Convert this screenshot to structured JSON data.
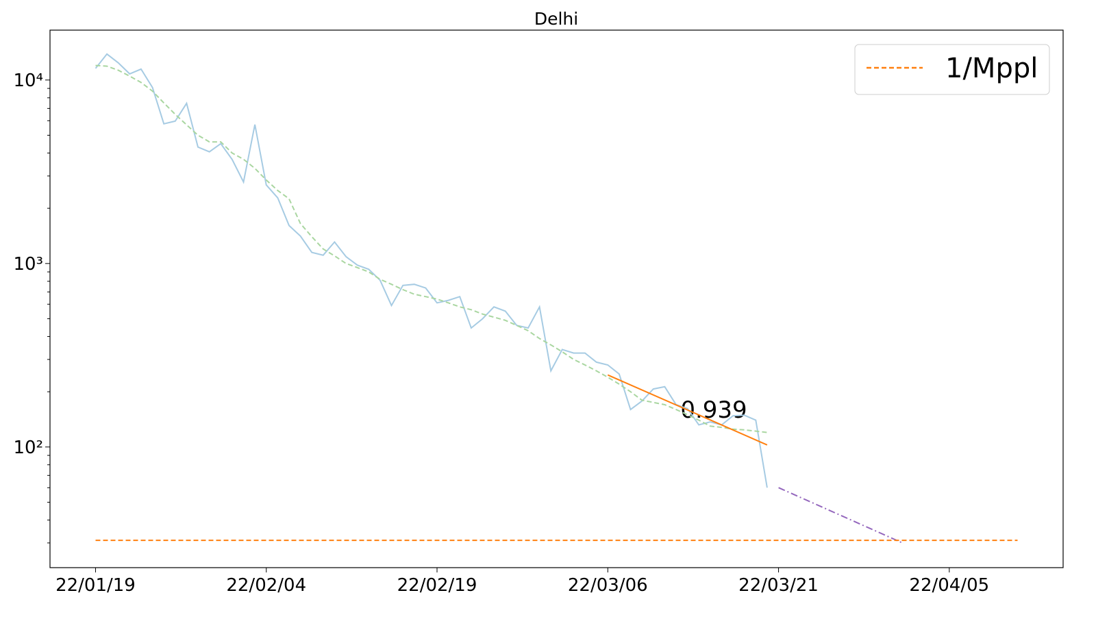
{
  "chart_data": {
    "type": "line",
    "title": "Delhi",
    "yscale": "log",
    "xlim": [
      -4,
      85
    ],
    "ylim": [
      22,
      18700
    ],
    "xticks": [
      {
        "value": 0,
        "label": "22/01/19"
      },
      {
        "value": 15,
        "label": "22/02/04"
      },
      {
        "value": 30,
        "label": "22/02/19"
      },
      {
        "value": 45,
        "label": "22/03/06"
      },
      {
        "value": 60,
        "label": "22/03/21"
      },
      {
        "value": 75,
        "label": "22/04/05"
      }
    ],
    "yticks": [
      {
        "value": 100,
        "label": "10²"
      },
      {
        "value": 1000,
        "label": "10³"
      },
      {
        "value": 10000,
        "label": "10⁴"
      }
    ],
    "yminorticks": [
      30,
      40,
      50,
      60,
      70,
      80,
      90,
      200,
      300,
      400,
      500,
      600,
      700,
      800,
      900,
      2000,
      3000,
      4000,
      5000,
      6000,
      7000,
      8000,
      9000
    ],
    "legend": "upper right",
    "annotation": {
      "text": "0.939",
      "color": "#ff7f0e"
    },
    "series": [
      {
        "color": "#a6cbe3",
        "dash": "solid",
        "x": [
          0,
          1,
          2,
          3,
          4,
          5,
          6,
          7,
          8,
          9,
          10,
          11,
          12,
          13,
          14,
          15,
          16,
          17,
          18,
          19,
          20,
          21,
          22,
          23,
          24,
          25,
          26,
          27,
          28,
          29,
          30,
          31,
          32,
          33,
          34,
          35,
          36,
          37,
          38,
          39,
          40,
          41,
          42,
          43,
          44,
          45,
          46,
          47,
          48,
          49,
          50,
          51,
          52,
          53,
          54,
          55,
          56,
          57,
          58,
          59
        ],
        "values": [
          11570,
          13860,
          12400,
          10800,
          11470,
          9100,
          5770,
          5970,
          7460,
          4310,
          4060,
          4500,
          3690,
          2780,
          5720,
          2680,
          2280,
          1610,
          1410,
          1150,
          1110,
          1310,
          1090,
          980,
          930,
          810,
          590,
          760,
          770,
          735,
          610,
          630,
          660,
          445,
          500,
          580,
          550,
          460,
          445,
          580,
          260,
          340,
          325,
          325,
          290,
          280,
          250,
          160,
          178,
          207,
          213,
          170,
          162,
          132,
          137,
          132,
          148,
          149,
          140,
          60
        ]
      },
      {
        "color": "#a9d6a0",
        "dash": "dashed",
        "x": [
          0,
          1,
          2,
          3,
          4,
          5,
          6,
          7,
          8,
          9,
          10,
          11,
          12,
          13,
          14,
          15,
          16,
          17,
          18,
          19,
          20,
          21,
          22,
          23,
          24,
          25,
          26,
          27,
          28,
          29,
          30,
          31,
          32,
          33,
          34,
          35,
          36,
          37,
          38,
          39,
          40,
          41,
          42,
          43,
          44,
          45,
          46,
          47,
          48,
          49,
          50,
          51,
          52,
          53,
          54,
          55,
          56,
          57,
          58,
          59
        ],
        "values": [
          12000,
          11900,
          11300,
          10500,
          9700,
          8700,
          7500,
          6500,
          5700,
          5000,
          4600,
          4600,
          4000,
          3700,
          3300,
          2850,
          2500,
          2250,
          1650,
          1400,
          1200,
          1100,
          1000,
          950,
          900,
          820,
          770,
          720,
          680,
          660,
          640,
          610,
          580,
          560,
          530,
          510,
          490,
          460,
          430,
          390,
          360,
          330,
          300,
          280,
          260,
          240,
          220,
          200,
          180,
          175,
          170,
          160,
          150,
          140,
          130,
          128,
          125,
          124,
          122,
          120
        ]
      },
      {
        "color": "#ff7f0e",
        "dash": "solid",
        "x": [
          45,
          59
        ],
        "values": [
          247,
          102.6
        ]
      },
      {
        "color": "#9467bd",
        "dash": "dashdot",
        "x": [
          60,
          71
        ],
        "values": [
          60,
          29.8
        ]
      },
      {
        "name": "1/Mppl",
        "color": "#ff7f0e",
        "dash": "dashed",
        "x": [
          0,
          81
        ],
        "values": [
          31,
          31
        ]
      }
    ]
  }
}
